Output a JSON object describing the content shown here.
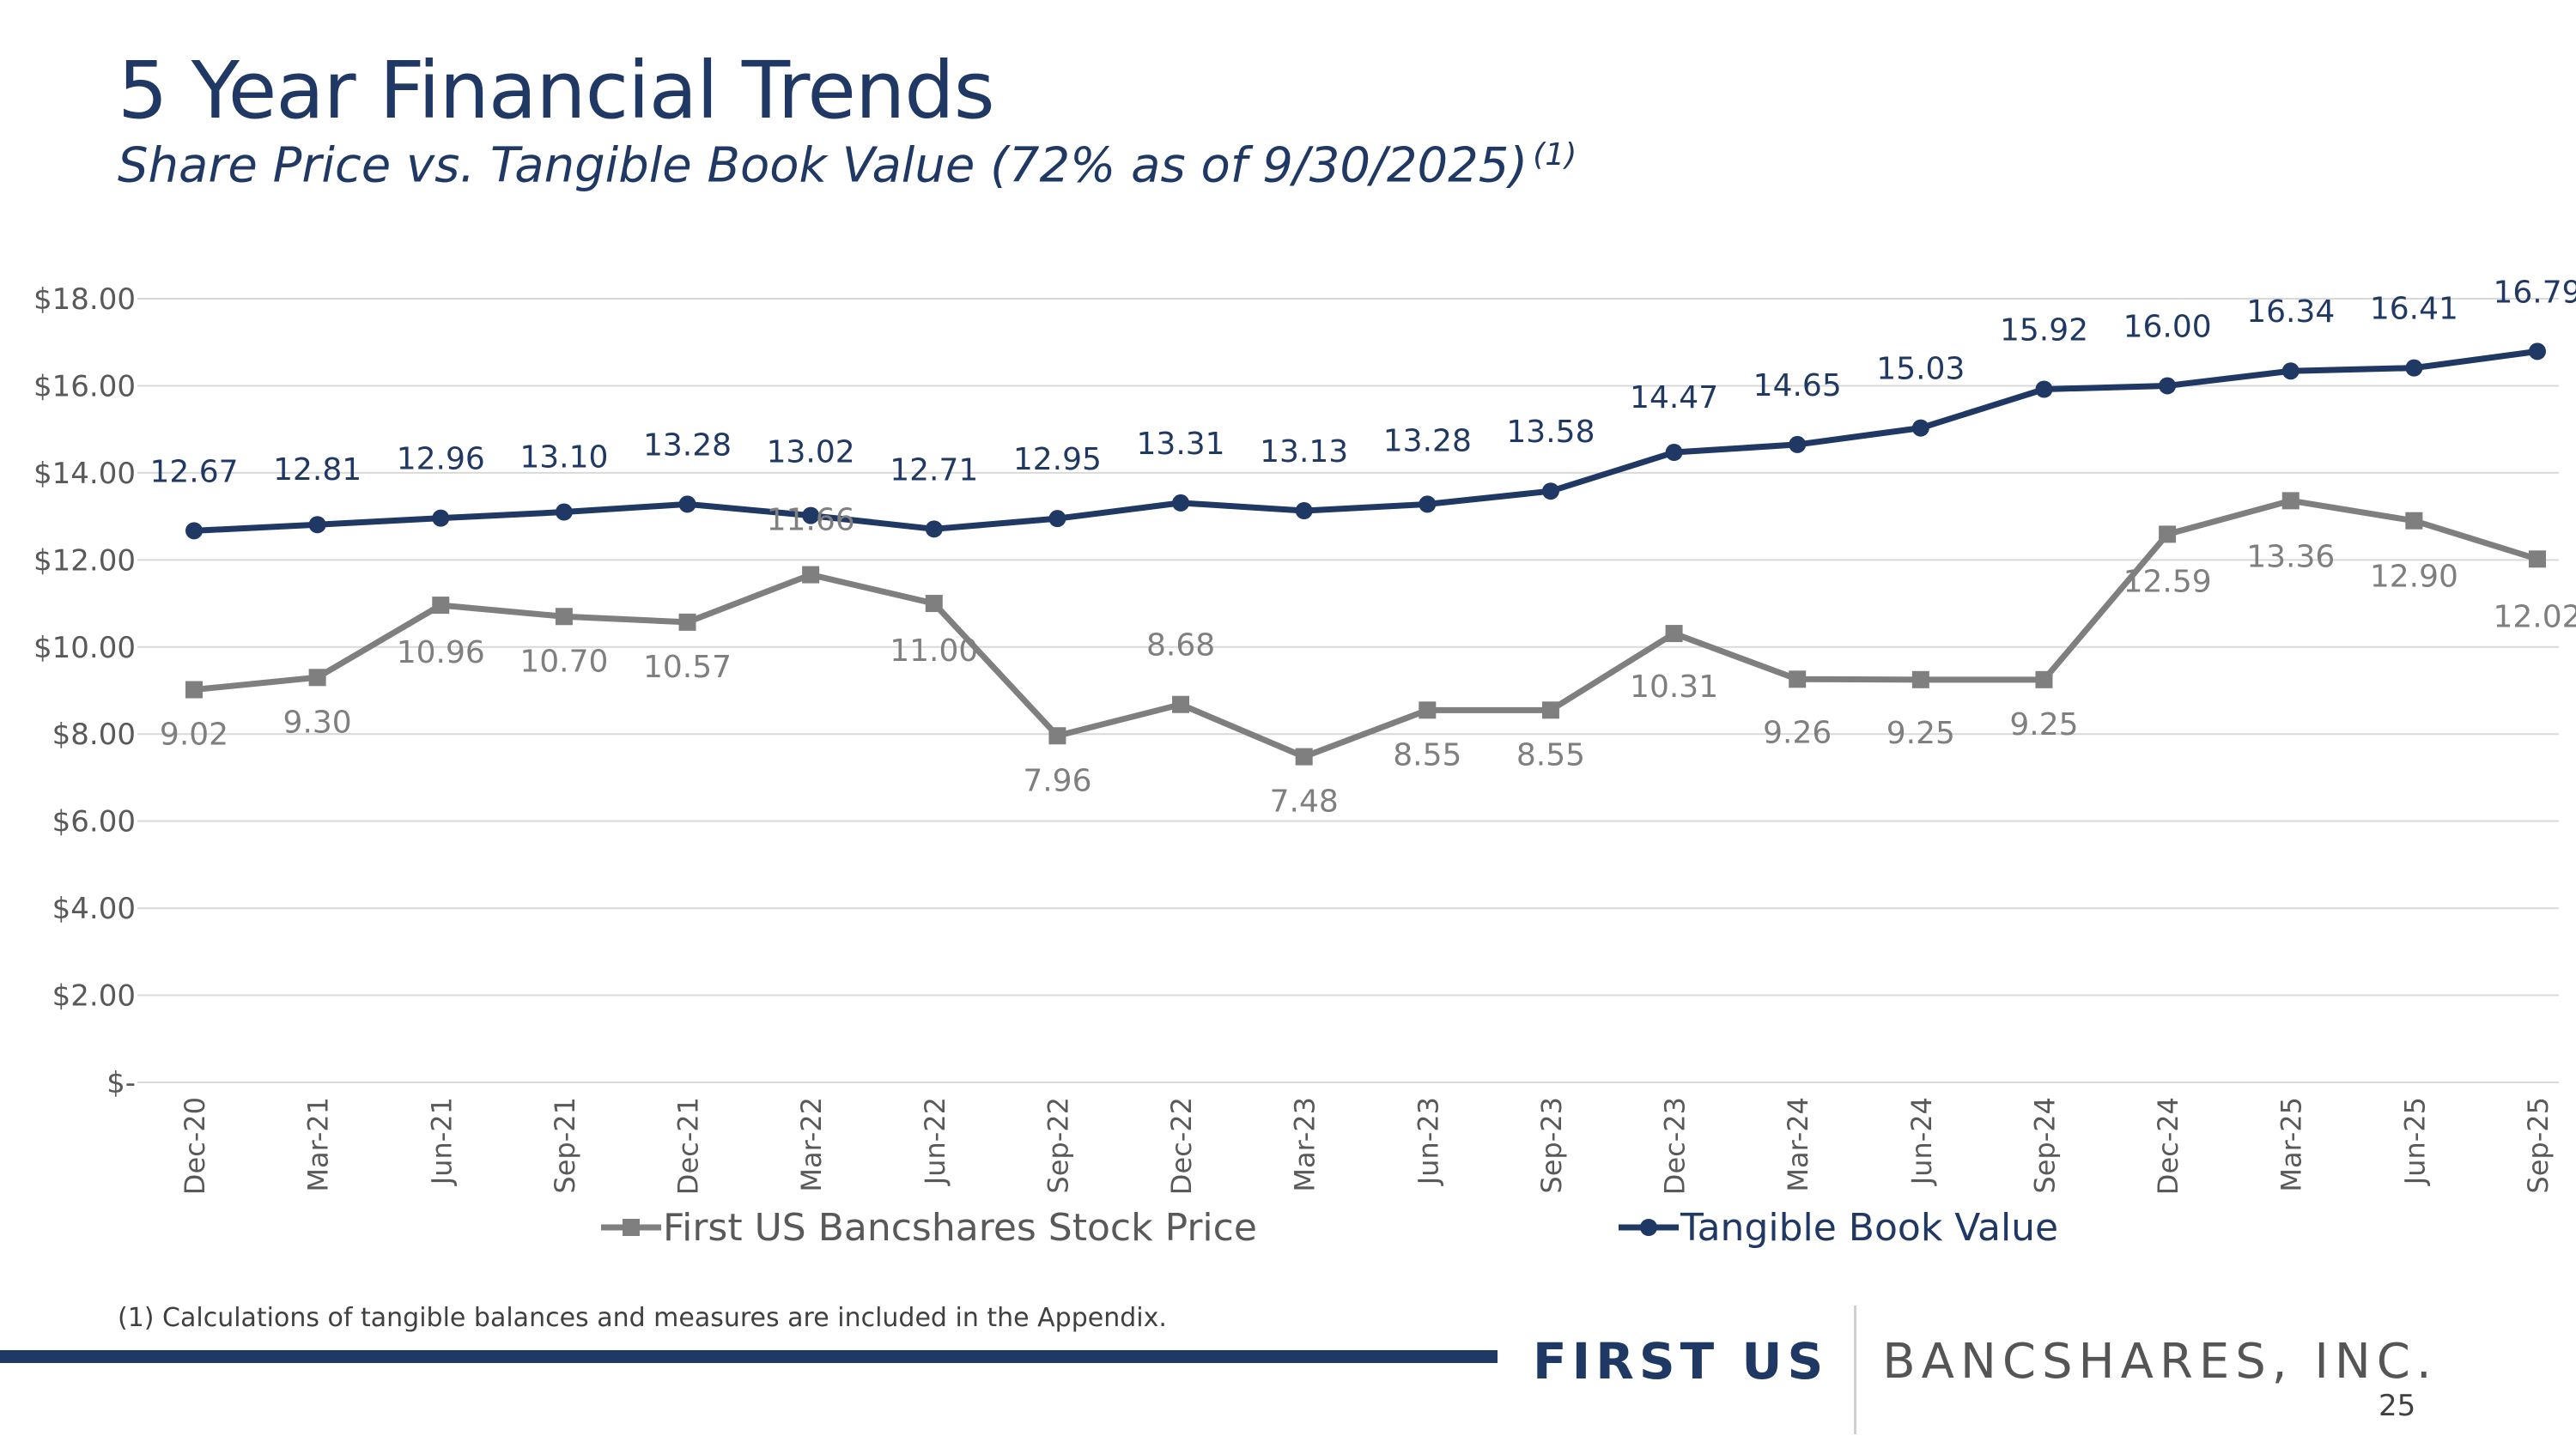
{
  "page": {
    "title": "5 Year Financial Trends",
    "subtitle": "Share Price vs. Tangible Book Value (72% as of 9/30/2025)",
    "subtitle_sup": "(1)",
    "footnote": "(1) Calculations of tangible balances and measures are included in the Appendix.",
    "logo_first": "FIRST US",
    "logo_rest": "BANCSHARES, INC.",
    "page_number": "25"
  },
  "chart_data": {
    "type": "line",
    "title": "",
    "xlabel": "",
    "ylabel": "",
    "ylim": [
      0,
      18
    ],
    "y_ticks": [
      0,
      2,
      4,
      6,
      8,
      10,
      12,
      14,
      16,
      18
    ],
    "y_tick_labels": [
      "$-",
      "$2.00",
      "$4.00",
      "$6.00",
      "$8.00",
      "$10.00",
      "$12.00",
      "$14.00",
      "$16.00",
      "$18.00"
    ],
    "grid": true,
    "legend_position": "bottom",
    "categories": [
      "Dec-20",
      "Mar-21",
      "Jun-21",
      "Sep-21",
      "Dec-21",
      "Mar-22",
      "Jun-22",
      "Sep-22",
      "Dec-22",
      "Mar-23",
      "Jun-23",
      "Sep-23",
      "Dec-23",
      "Mar-24",
      "Jun-24",
      "Sep-24",
      "Dec-24",
      "Mar-25",
      "Jun-25",
      "Sep-25"
    ],
    "series": [
      {
        "name": "First US Bancshares Stock Price",
        "color": "#7f7f7f",
        "marker": "square",
        "values": [
          9.02,
          9.3,
          10.96,
          10.7,
          10.57,
          11.66,
          11.0,
          7.96,
          8.68,
          7.48,
          8.55,
          8.55,
          10.31,
          9.26,
          9.25,
          9.25,
          12.59,
          13.36,
          12.9,
          12.02
        ],
        "labels": [
          "9.02",
          "9.30",
          "10.96",
          "10.70",
          "10.57",
          "11.66",
          "11.00",
          "7.96",
          "8.68",
          "7.48",
          "8.55",
          "8.55",
          "10.31",
          "9.26",
          "9.25",
          "9.25",
          "12.59",
          "13.36",
          "12.90",
          "12.02"
        ]
      },
      {
        "name": "Tangible Book Value",
        "color": "#1f3864",
        "marker": "circle",
        "values": [
          12.67,
          12.81,
          12.96,
          13.1,
          13.28,
          13.02,
          12.71,
          12.95,
          13.31,
          13.13,
          13.28,
          13.58,
          14.47,
          14.65,
          15.03,
          15.92,
          16.0,
          16.34,
          16.41,
          16.79
        ],
        "labels": [
          "12.67",
          "12.81",
          "12.96",
          "13.10",
          "13.28",
          "13.02",
          "12.71",
          "12.95",
          "13.31",
          "13.13",
          "13.28",
          "13.58",
          "14.47",
          "14.65",
          "15.03",
          "15.92",
          "16.00",
          "16.34",
          "16.41",
          "16.79"
        ]
      }
    ]
  }
}
